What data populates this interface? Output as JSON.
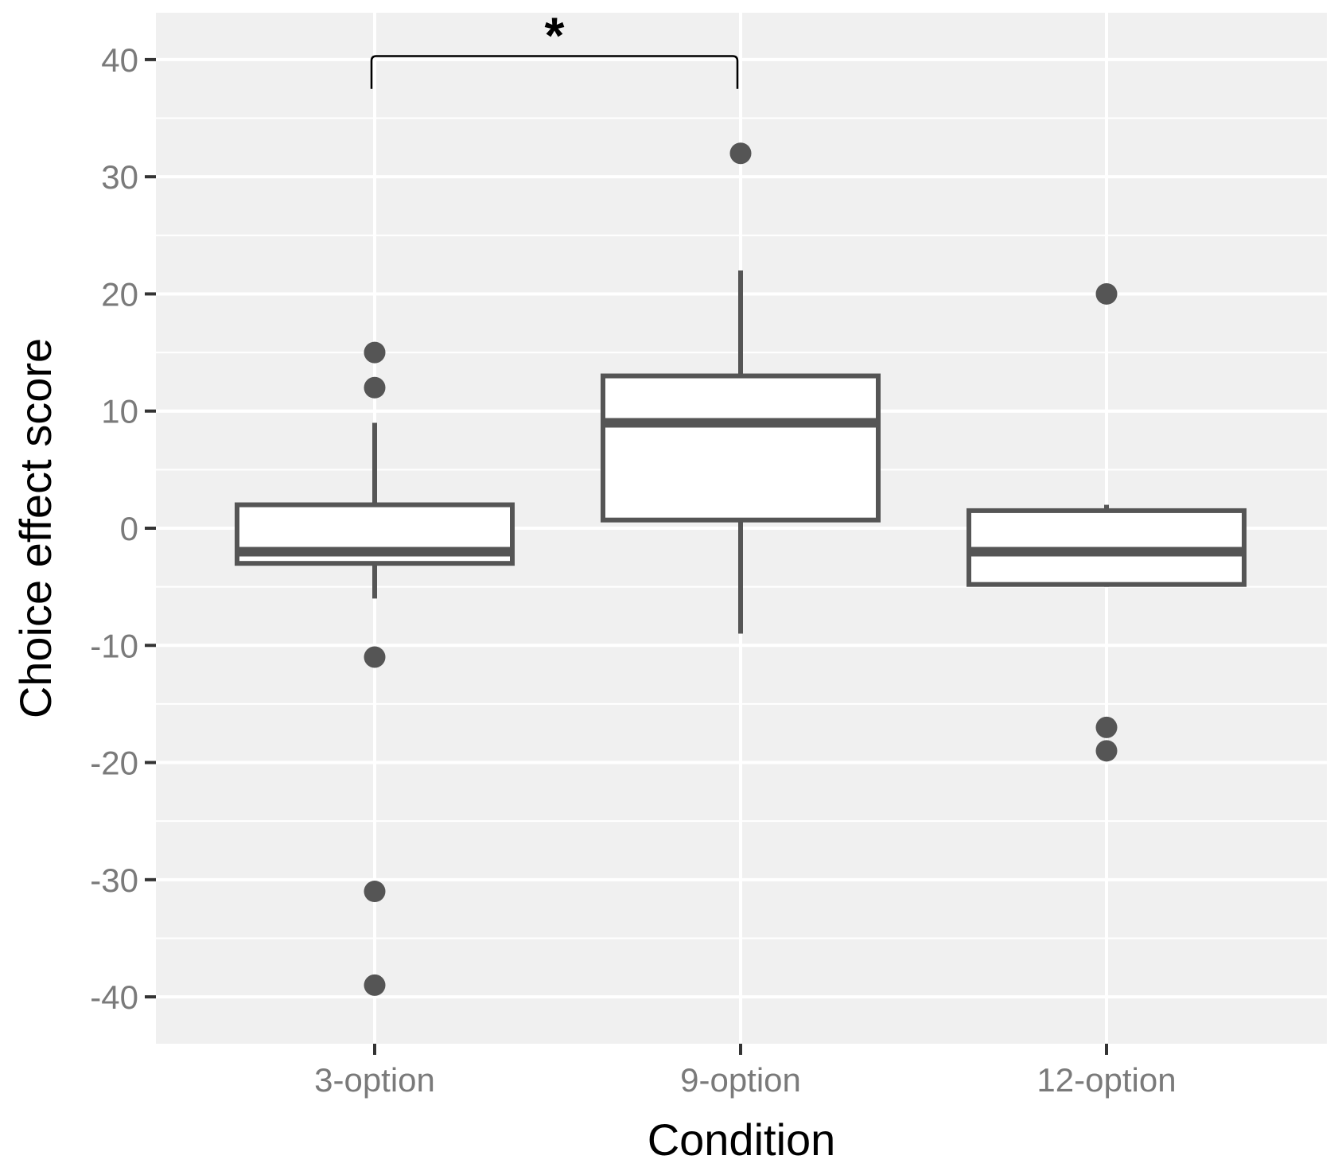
{
  "chart_data": {
    "type": "boxplot",
    "title": "",
    "xlabel": "Condition",
    "ylabel": "Choice effect score",
    "ylim": [
      -44,
      44
    ],
    "yticks": [
      -40,
      -30,
      -20,
      -10,
      0,
      10,
      20,
      30,
      40
    ],
    "ytick_labels": [
      "-40",
      "-30",
      "-20",
      "-10",
      "0",
      "10",
      "20",
      "30",
      "40"
    ],
    "grid": true,
    "background": "#f0f0f0",
    "grid_color": "#ffffff",
    "box_stroke": "#555555",
    "box_fill": "#ffffff",
    "categories": [
      "3-option",
      "9-option",
      "12-option"
    ],
    "boxes": [
      {
        "category": "3-option",
        "whisker_low": -6,
        "q1": -3,
        "median": -2,
        "q3": 2,
        "whisker_high": 9,
        "outliers": [
          15,
          12,
          -11,
          -31,
          -39
        ]
      },
      {
        "category": "9-option",
        "whisker_low": -9,
        "q1": 0.7,
        "median": 9,
        "q3": 13,
        "whisker_high": 22,
        "outliers": [
          32
        ]
      },
      {
        "category": "12-option",
        "whisker_low": -5,
        "q1": -4.8,
        "median": -2,
        "q3": 1.5,
        "whisker_high": 2,
        "outliers": [
          20,
          -17,
          -19
        ]
      }
    ],
    "annotations": [
      {
        "type": "significance",
        "from": "3-option",
        "to": "9-option",
        "label": "*",
        "y": 40.3,
        "leg_bottom": 37.5
      }
    ]
  }
}
